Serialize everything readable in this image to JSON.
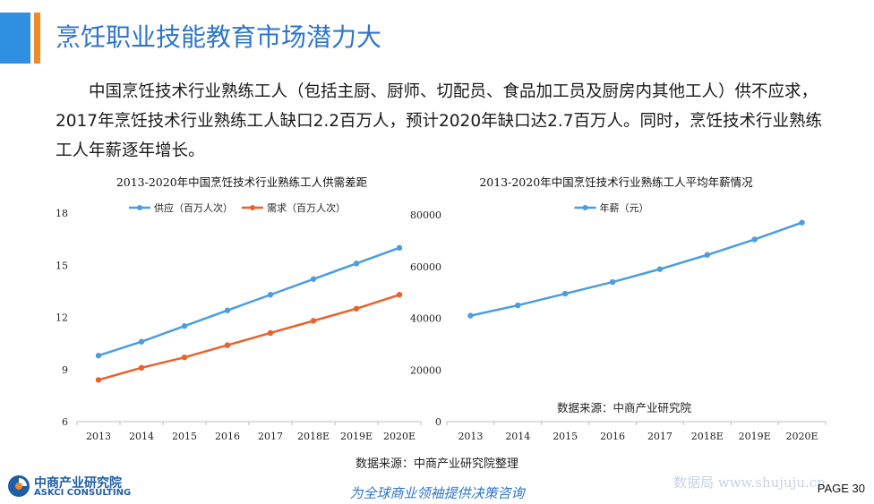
{
  "header": {
    "title": "烹饪职业技能教育市场潜力大"
  },
  "intro": {
    "paragraph": "中国烹饪技术行业熟练工人（包括主厨、厨师、切配员、食品加工员及厨房内其他工人）供不应求，2017年烹饪技术行业熟练工人缺口2.2百万人，预计2020年缺口达2.7百万人。同时，烹饪技术行业熟练工人年薪逐年增长。"
  },
  "chart_data": [
    {
      "type": "line",
      "title": "2013-2020年中国烹饪技术行业熟练工人供需差距",
      "categories": [
        "2013",
        "2014",
        "2015",
        "2016",
        "2017",
        "2018E",
        "2019E",
        "2020E"
      ],
      "series": [
        {
          "name": "供应（百万人次）",
          "color": "#4a9ee0",
          "values": [
            9.8,
            10.6,
            11.5,
            12.4,
            13.3,
            14.2,
            15.1,
            16.0
          ]
        },
        {
          "name": "需求（百万人次）",
          "color": "#e8622a",
          "values": [
            8.4,
            9.1,
            9.7,
            10.4,
            11.1,
            11.8,
            12.5,
            13.3
          ]
        }
      ],
      "ylim": [
        6,
        18
      ],
      "yticks": [
        6,
        9,
        12,
        15,
        18
      ],
      "legend": "top-center",
      "grid": false
    },
    {
      "type": "line",
      "title": "2013-2020年中国烹饪技术行业熟练工人平均年薪情况",
      "categories": [
        "2013",
        "2014",
        "2015",
        "2016",
        "2017",
        "2018E",
        "2019E",
        "2020E"
      ],
      "series": [
        {
          "name": "年薪（元）",
          "color": "#4a9ee0",
          "values": [
            41000,
            45000,
            49500,
            54000,
            59000,
            64500,
            70500,
            77000
          ]
        }
      ],
      "ylim": [
        0,
        80000
      ],
      "yticks": [
        0,
        20000,
        40000,
        60000,
        80000
      ],
      "annotation": "数据来源：中商产业研究院",
      "legend": "top-center",
      "grid": false
    }
  ],
  "footer": {
    "source": "数据来源：中商产业研究院整理",
    "slogan": "为全球商业领袖提供决策咨询",
    "logo_cn": "中商产业研究院",
    "logo_en": "ASKCI CONSULTING",
    "watermark": "数据局 www.shujuju.cn",
    "page": "PAGE 30"
  },
  "colors": {
    "title_blue": "#2e75c9",
    "accent_blue": "#2f8fe0",
    "accent_orange": "#f08a24"
  }
}
